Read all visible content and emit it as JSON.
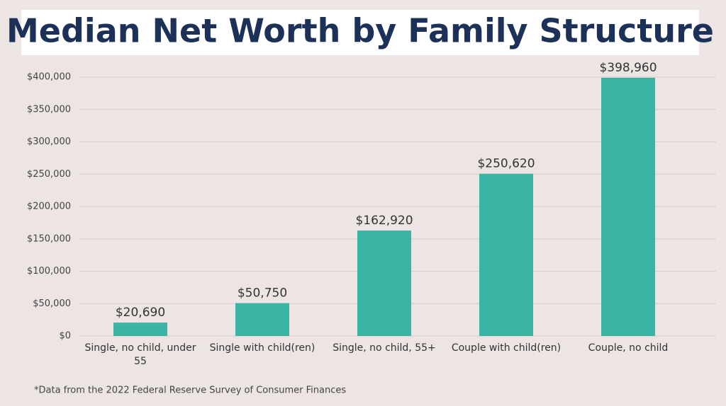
{
  "chart_data": {
    "type": "bar",
    "title": "Median Net Worth by Family Structure",
    "footnote": "*Data from the 2022 Federal Reserve Survey of Consumer Finances",
    "categories": [
      "Single, no child, under 55",
      "Single with child(ren)",
      "Single, no child, 55+",
      "Couple with child(ren)",
      "Couple, no child"
    ],
    "values": [
      20690,
      50750,
      162920,
      250620,
      398960
    ],
    "value_labels": [
      "$20,690",
      "$50,750",
      "$162,920",
      "$250,620",
      "$398,960"
    ],
    "color": "#3ab5a3",
    "ylim": [
      0,
      400000
    ],
    "yticks": [
      {
        "value": 0,
        "label": "$0"
      },
      {
        "value": 50000,
        "label": "$50,000"
      },
      {
        "value": 100000,
        "label": "$100,000"
      },
      {
        "value": 150000,
        "label": "$150,000"
      },
      {
        "value": 200000,
        "label": "$200,000"
      },
      {
        "value": 250000,
        "label": "$250,000"
      },
      {
        "value": 300000,
        "label": "$300,000"
      },
      {
        "value": 350000,
        "label": "$350,000"
      },
      {
        "value": 400000,
        "label": "$400,000"
      }
    ],
    "grid": true
  }
}
